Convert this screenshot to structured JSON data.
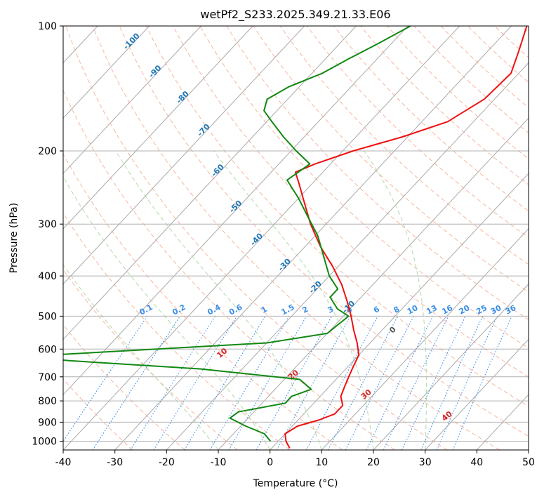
{
  "chart_data": {
    "type": "line",
    "title": "wetPf2_S233.2025.349.21.33.E06",
    "xlabel": "Temperature (°C)",
    "ylabel": "Pressure (hPa)",
    "xlim": [
      -40,
      50
    ],
    "ylim": [
      1000,
      100
    ],
    "y_scale": "log",
    "grid": true,
    "x_ticks": [
      "-40",
      "-30",
      "-20",
      "-10",
      "0",
      "10",
      "20",
      "30",
      "40",
      "50"
    ],
    "y_ticks": [
      "100",
      "200",
      "300",
      "400",
      "500",
      "600",
      "700",
      "800",
      "900",
      "1000"
    ],
    "colors": {
      "temperature": "#ee1111",
      "dewpoint": "#118811",
      "isotherm": "#aaaaaa",
      "dry_adiabat": "#f4a48a",
      "moist_adiabat": "#a8d8a0",
      "mixing_ratio": "#3a8ee6",
      "dry_adiabat_label": "#d62728",
      "moist_adiabat_label": "#555555",
      "isotherm_label": "#1f77b4"
    },
    "series": [
      {
        "name": "Temperature",
        "points": [
          {
            "p": 1040,
            "t": 3.5
          },
          {
            "p": 1000,
            "t": 1.5
          },
          {
            "p": 960,
            "t": 0.0
          },
          {
            "p": 920,
            "t": 1.0
          },
          {
            "p": 890,
            "t": 4.0
          },
          {
            "p": 860,
            "t": 6.0
          },
          {
            "p": 820,
            "t": 6.0
          },
          {
            "p": 780,
            "t": 4.0
          },
          {
            "p": 740,
            "t": 3.0
          },
          {
            "p": 700,
            "t": 2.0
          },
          {
            "p": 660,
            "t": 1.0
          },
          {
            "p": 620,
            "t": 0.0
          },
          {
            "p": 580,
            "t": -2.5
          },
          {
            "p": 540,
            "t": -5.5
          },
          {
            "p": 500,
            "t": -8.5
          },
          {
            "p": 460,
            "t": -12.0
          },
          {
            "p": 420,
            "t": -16.0
          },
          {
            "p": 380,
            "t": -21.0
          },
          {
            "p": 340,
            "t": -27.0
          },
          {
            "p": 300,
            "t": -33.0
          },
          {
            "p": 270,
            "t": -37.5
          },
          {
            "p": 240,
            "t": -42.5
          },
          {
            "p": 225,
            "t": -45.3
          },
          {
            "p": 215,
            "t": -43.0
          },
          {
            "p": 200,
            "t": -38.0
          },
          {
            "p": 185,
            "t": -31.0
          },
          {
            "p": 170,
            "t": -25.0
          },
          {
            "p": 150,
            "t": -22.0
          },
          {
            "p": 130,
            "t": -21.5
          },
          {
            "p": 115,
            "t": -24.0
          },
          {
            "p": 100,
            "t": -27.0
          }
        ]
      },
      {
        "name": "Dewpoint",
        "points": [
          {
            "p": 1000,
            "t": -1.5
          },
          {
            "p": 960,
            "t": -4.0
          },
          {
            "p": 920,
            "t": -9.0
          },
          {
            "p": 880,
            "t": -13.5
          },
          {
            "p": 850,
            "t": -13.0
          },
          {
            "p": 810,
            "t": -5.5
          },
          {
            "p": 780,
            "t": -5.5
          },
          {
            "p": 750,
            "t": -3.0
          },
          {
            "p": 710,
            "t": -7.0
          },
          {
            "p": 670,
            "t": -28.0
          },
          {
            "p": 640,
            "t": -55.0
          },
          {
            "p": 625,
            "t": -64.0
          },
          {
            "p": 610,
            "t": -50.0
          },
          {
            "p": 580,
            "t": -20.0
          },
          {
            "p": 550,
            "t": -10.0
          },
          {
            "p": 500,
            "t": -9.0
          },
          {
            "p": 480,
            "t": -12.5
          },
          {
            "p": 450,
            "t": -16.0
          },
          {
            "p": 430,
            "t": -16.0
          },
          {
            "p": 400,
            "t": -20.0
          },
          {
            "p": 360,
            "t": -24.5
          },
          {
            "p": 320,
            "t": -29.5
          },
          {
            "p": 290,
            "t": -34.5
          },
          {
            "p": 260,
            "t": -40.0
          },
          {
            "p": 235,
            "t": -45.5
          },
          {
            "p": 215,
            "t": -44.0
          },
          {
            "p": 200,
            "t": -49.0
          },
          {
            "p": 185,
            "t": -54.0
          },
          {
            "p": 170,
            "t": -59.0
          },
          {
            "p": 160,
            "t": -62.5
          },
          {
            "p": 150,
            "t": -64.0
          },
          {
            "p": 140,
            "t": -62.0
          },
          {
            "p": 130,
            "t": -58.0
          },
          {
            "p": 120,
            "t": -55.5
          },
          {
            "p": 110,
            "t": -52.5
          },
          {
            "p": 100,
            "t": -49.5
          }
        ]
      }
    ],
    "isotherms": [
      -160,
      -150,
      -140,
      -130,
      -120,
      -110,
      -100,
      -90,
      -80,
      -70,
      -60,
      -50,
      -40,
      -30,
      -20,
      -10,
      0,
      10,
      20,
      30,
      40,
      50
    ],
    "isotherm_labels": [
      "-100",
      "-90",
      "-80",
      "-70",
      "-60",
      "-50",
      "-40",
      "-30",
      "-20",
      "-10"
    ],
    "isotherm_label_values": [
      -100,
      -90,
      -80,
      -70,
      -60,
      -50,
      -40,
      -30,
      -20,
      -10
    ],
    "dry_adiabats_theta_c": [
      -30,
      -20,
      -10,
      0,
      10,
      20,
      30,
      40,
      50,
      60,
      70,
      80,
      90,
      100,
      110,
      120,
      130,
      140,
      150,
      160,
      170,
      180,
      190,
      200,
      210,
      220,
      230,
      240
    ],
    "moist_adiabats_c": [
      -10,
      0,
      10,
      20,
      30
    ],
    "mixing_ratio_labels": [
      "0.1",
      "0.2",
      "0.4",
      "0.6",
      "1",
      "1.5",
      "2",
      "3",
      "4",
      "6",
      "8",
      "10",
      "13",
      "16",
      "20",
      "25",
      "30",
      "36"
    ],
    "mixing_ratio_values": [
      0.1,
      0.2,
      0.4,
      0.6,
      1,
      1.5,
      2,
      3,
      4,
      6,
      8,
      10,
      13,
      16,
      20,
      25,
      30,
      36
    ],
    "dry_adiabat_labels": [
      "10",
      "20",
      "30",
      "40"
    ],
    "dry_adiabat_label_values": [
      10,
      20,
      30,
      40
    ],
    "moist_adiabat_labels": [
      "0"
    ],
    "moist_adiabat_label_values": [
      0
    ]
  }
}
